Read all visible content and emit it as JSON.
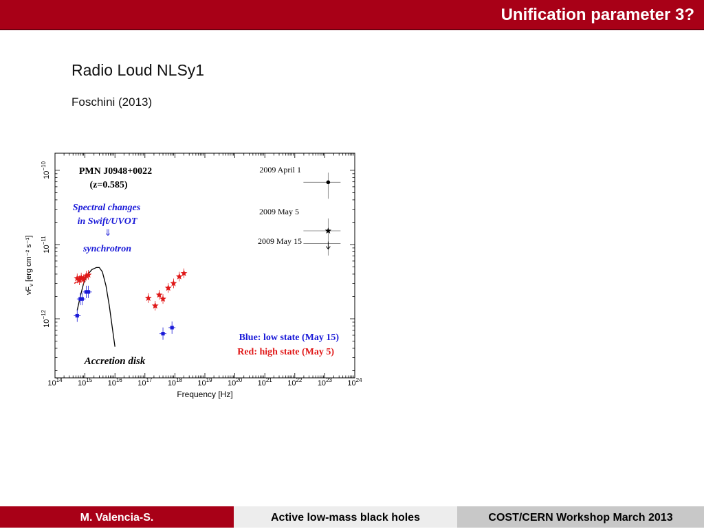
{
  "header": {
    "title": "Unification parameter 3?"
  },
  "content": {
    "heading": "Radio Loud NLSy1",
    "citation": "Foschini (2013)"
  },
  "chart_data": {
    "type": "scatter",
    "xlabel": "Frequency [Hz]",
    "ylabel_prefix": "νF",
    "ylabel_sub": "ν",
    "ylabel_suffix": " [erg cm⁻² s⁻¹]",
    "x_scale": "log",
    "y_scale": "log",
    "xlim": [
      100000000000000.0,
      1e+24
    ],
    "ylim": [
      1.6e-13,
      1.7e-10
    ],
    "x_ticks": [
      {
        "v": 100000000000000.0,
        "base": "10",
        "exp": "14"
      },
      {
        "v": 1000000000000000.0,
        "base": "10",
        "exp": "15"
      },
      {
        "v": 1e+16,
        "base": "10",
        "exp": "16"
      },
      {
        "v": 1e+17,
        "base": "10",
        "exp": "17"
      },
      {
        "v": 1e+18,
        "base": "10",
        "exp": "18"
      },
      {
        "v": 1e+19,
        "base": "10",
        "exp": "19"
      },
      {
        "v": 1e+20,
        "base": "10",
        "exp": "20"
      },
      {
        "v": 1e+21,
        "base": "10",
        "exp": "21"
      },
      {
        "v": 1e+22,
        "base": "10",
        "exp": "22"
      },
      {
        "v": 1e+23,
        "base": "10",
        "exp": "23"
      },
      {
        "v": 1e+24,
        "base": "10",
        "exp": "24"
      }
    ],
    "y_ticks": [
      {
        "v": 1e-10,
        "base": "10",
        "exp": "−10"
      },
      {
        "v": 1e-11,
        "base": "10",
        "exp": "−11"
      },
      {
        "v": 1e-12,
        "base": "10",
        "exp": "−12"
      }
    ],
    "source_name": "PMN J0948+0022",
    "source_redshift": "(z=0.585)",
    "annotation_synchrotron": [
      "Spectral changes",
      "in Swift/UVOT",
      "synchrotron"
    ],
    "annotation_disk": "Accretion disk",
    "legend_entries": [
      {
        "label": "2009 April 1",
        "marker": "circle",
        "freq": 1.3e+23,
        "flux": 6.9e-11
      },
      {
        "label": "2009 May 5",
        "marker": "star",
        "freq": 1.3e+23,
        "flux": 1.53e-11
      },
      {
        "label": "2009 May 15",
        "marker": "upper-limit",
        "freq": 1.3e+23,
        "flux": 1.03e-11
      }
    ],
    "state_labels": [
      {
        "text": "Blue: low state (May 15)",
        "color": "#1a1ad8"
      },
      {
        "text": "Red: high state (May 5)",
        "color": "#e01818"
      }
    ],
    "series": [
      {
        "name": "Blue: low state (May 15)",
        "color": "#1a1ad8",
        "marker": "square",
        "points": [
          {
            "x": 550000000000000.0,
            "y": 1.1e-12
          },
          {
            "x": 700000000000000.0,
            "y": 1.85e-12
          },
          {
            "x": 800000000000000.0,
            "y": 1.85e-12
          },
          {
            "x": 1100000000000000.0,
            "y": 2.3e-12
          },
          {
            "x": 1300000000000000.0,
            "y": 2.3e-12
          },
          {
            "x": 4e+17,
            "y": 6.3e-13
          },
          {
            "x": 8e+17,
            "y": 7.6e-13
          }
        ]
      },
      {
        "name": "Red: high state (May 5)",
        "color": "#e01818",
        "marker": "star",
        "points": [
          {
            "x": 550000000000000.0,
            "y": 3.5e-12
          },
          {
            "x": 650000000000000.0,
            "y": 3.3e-12
          },
          {
            "x": 750000000000000.0,
            "y": 3.6e-12
          },
          {
            "x": 900000000000000.0,
            "y": 3.4e-12
          },
          {
            "x": 1100000000000000.0,
            "y": 3.8e-12
          },
          {
            "x": 1300000000000000.0,
            "y": 3.9e-12
          },
          {
            "x": 1.3e+17,
            "y": 1.9e-12
          },
          {
            "x": 2.2e+17,
            "y": 1.5e-12
          },
          {
            "x": 3e+17,
            "y": 2.1e-12
          },
          {
            "x": 4e+17,
            "y": 1.85e-12
          },
          {
            "x": 6e+17,
            "y": 2.6e-12
          },
          {
            "x": 9e+17,
            "y": 3e-12
          },
          {
            "x": 1.4e+18,
            "y": 3.7e-12
          },
          {
            "x": 2e+18,
            "y": 4.1e-12
          }
        ]
      }
    ],
    "model_curve": {
      "name": "Accretion disk",
      "points": [
        {
          "x": 550000000000000.0,
          "y": 1.3e-12
        },
        {
          "x": 700000000000000.0,
          "y": 2e-12
        },
        {
          "x": 900000000000000.0,
          "y": 3e-12
        },
        {
          "x": 1200000000000000.0,
          "y": 3.9e-12
        },
        {
          "x": 1700000000000000.0,
          "y": 4.6e-12
        },
        {
          "x": 2400000000000000.0,
          "y": 4.9e-12
        },
        {
          "x": 3000000000000000.0,
          "y": 4.9e-12
        },
        {
          "x": 3800000000000000.0,
          "y": 4.3e-12
        },
        {
          "x": 5000000000000000.0,
          "y": 2.8e-12
        },
        {
          "x": 6500000000000000.0,
          "y": 1.5e-12
        },
        {
          "x": 8000000000000000.0,
          "y": 8e-13
        },
        {
          "x": 1e+16,
          "y": 4.2e-13
        }
      ]
    }
  },
  "footer": {
    "author": "M. Valencia-S.",
    "topic": "Active low-mass black holes",
    "event": "COST/CERN Workshop March 2013"
  }
}
